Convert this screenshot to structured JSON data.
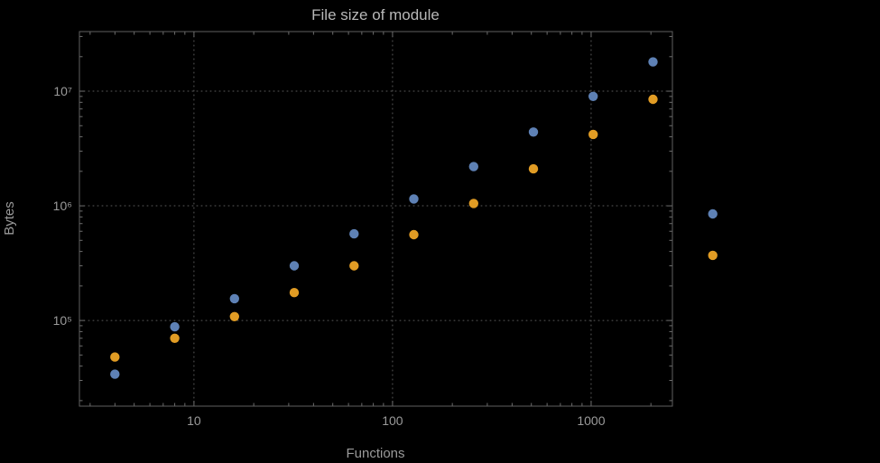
{
  "chart_data": {
    "type": "scatter",
    "title": "File size of module",
    "xlabel": "Functions",
    "ylabel": "Bytes",
    "x_scale": "log",
    "y_scale": "log",
    "x_range": [
      2.65,
      2566
    ],
    "y_range": [
      17900,
      33100000
    ],
    "grid": "dotted",
    "legend": "none",
    "x_ticks": [
      {
        "value": 10,
        "label": "10"
      },
      {
        "value": 100,
        "label": "100"
      },
      {
        "value": 1000,
        "label": "1000"
      }
    ],
    "y_ticks": [
      {
        "value": 100000,
        "label": "10⁵"
      },
      {
        "value": 1000000,
        "label": "10⁶"
      },
      {
        "value": 10000000,
        "label": "10⁷"
      }
    ],
    "colors": {
      "background": "#000000",
      "frame": "#606060",
      "grid": "#5a5a5a",
      "tick": "#6e6e6e",
      "tick_label": "#9a9a9a",
      "axis_label": "#9a9a9a",
      "title": "#b8b8b8",
      "series1": "#5E81B5",
      "series2": "#E19C24"
    },
    "series": [
      {
        "name": "series-1-blue",
        "color": "#5E81B5",
        "points": [
          [
            4,
            34000
          ],
          [
            8,
            88000
          ],
          [
            16,
            155000
          ],
          [
            32,
            300000
          ],
          [
            64,
            570000
          ],
          [
            128,
            1150000
          ],
          [
            256,
            2200000
          ],
          [
            512,
            4400000
          ],
          [
            1024,
            9000000
          ],
          [
            2048,
            18000000
          ],
          [
            4096,
            850000
          ]
        ]
      },
      {
        "name": "series-2-orange",
        "color": "#E19C24",
        "points": [
          [
            4,
            48000
          ],
          [
            8,
            70000
          ],
          [
            16,
            108000
          ],
          [
            32,
            175000
          ],
          [
            64,
            300000
          ],
          [
            128,
            560000
          ],
          [
            256,
            1050000
          ],
          [
            512,
            2100000
          ],
          [
            1024,
            4200000
          ],
          [
            2048,
            8500000
          ],
          [
            4096,
            370000
          ]
        ]
      }
    ]
  }
}
